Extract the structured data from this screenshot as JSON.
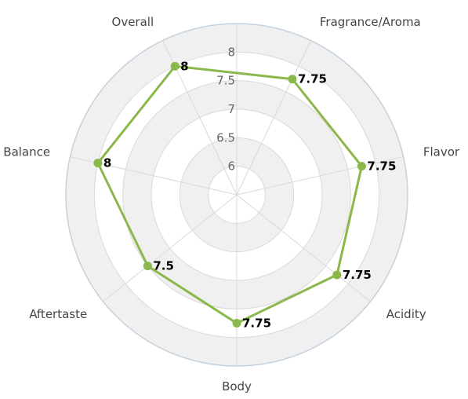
{
  "chart_data": {
    "type": "radar",
    "categories": [
      "Fragrance/Aroma",
      "Flavor",
      "Acidity",
      "Body",
      "Aftertaste",
      "Balance",
      "Overall"
    ],
    "series": [
      {
        "values": [
          7.75,
          7.75,
          7.75,
          7.75,
          7.5,
          8,
          8
        ]
      }
    ],
    "data_labels": [
      "7.75",
      "7.75",
      "7.75",
      "7.75",
      "7.5",
      "8",
      "8"
    ],
    "radial_ticks": [
      "6",
      "6.5",
      "7",
      "7.5",
      "8"
    ],
    "tick_values": [
      6,
      6.5,
      7,
      7.5,
      8
    ],
    "rmin": 5.5,
    "rmax": 8.5,
    "grid": true,
    "legend": "none",
    "colors": {
      "series": "#8ab84a",
      "band_fill": "#f0f0f0",
      "grid_line": "#d9d9d9",
      "outer_border": "#c4d1de"
    }
  }
}
